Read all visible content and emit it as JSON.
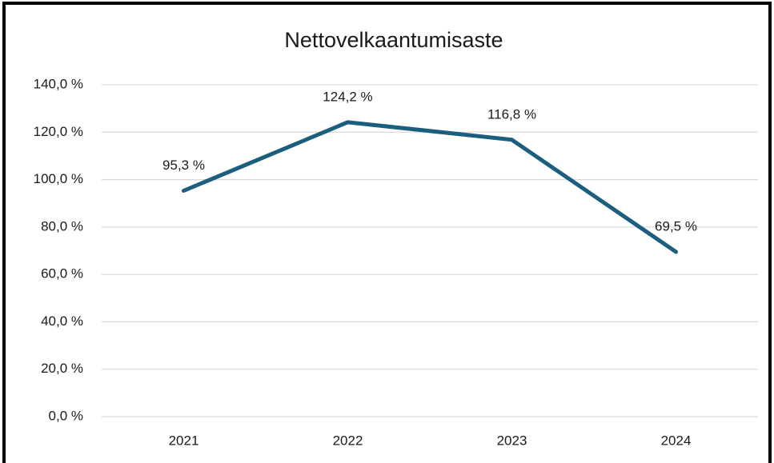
{
  "chart_data": {
    "type": "line",
    "title": "Nettovelkaantumisaste",
    "categories": [
      "2021",
      "2022",
      "2023",
      "2024"
    ],
    "series": [
      {
        "name": null,
        "color": "#1b5e7e",
        "values": [
          95.3,
          124.2,
          116.8,
          69.5
        ],
        "value_labels": [
          "95,3 %",
          "124,2 %",
          "116,8 %",
          "69,5 %"
        ]
      }
    ],
    "ylim": [
      0,
      140
    ],
    "yticks": [
      {
        "value": 0,
        "label": "0,0 %"
      },
      {
        "value": 20,
        "label": "20,0 %"
      },
      {
        "value": 40,
        "label": "40,0 %"
      },
      {
        "value": 60,
        "label": "60,0 %"
      },
      {
        "value": 80,
        "label": "80,0 %"
      },
      {
        "value": 100,
        "label": "100,0 %"
      },
      {
        "value": 120,
        "label": "120,0 %"
      },
      {
        "value": 140,
        "label": "140,0 %"
      }
    ],
    "grid": true
  }
}
